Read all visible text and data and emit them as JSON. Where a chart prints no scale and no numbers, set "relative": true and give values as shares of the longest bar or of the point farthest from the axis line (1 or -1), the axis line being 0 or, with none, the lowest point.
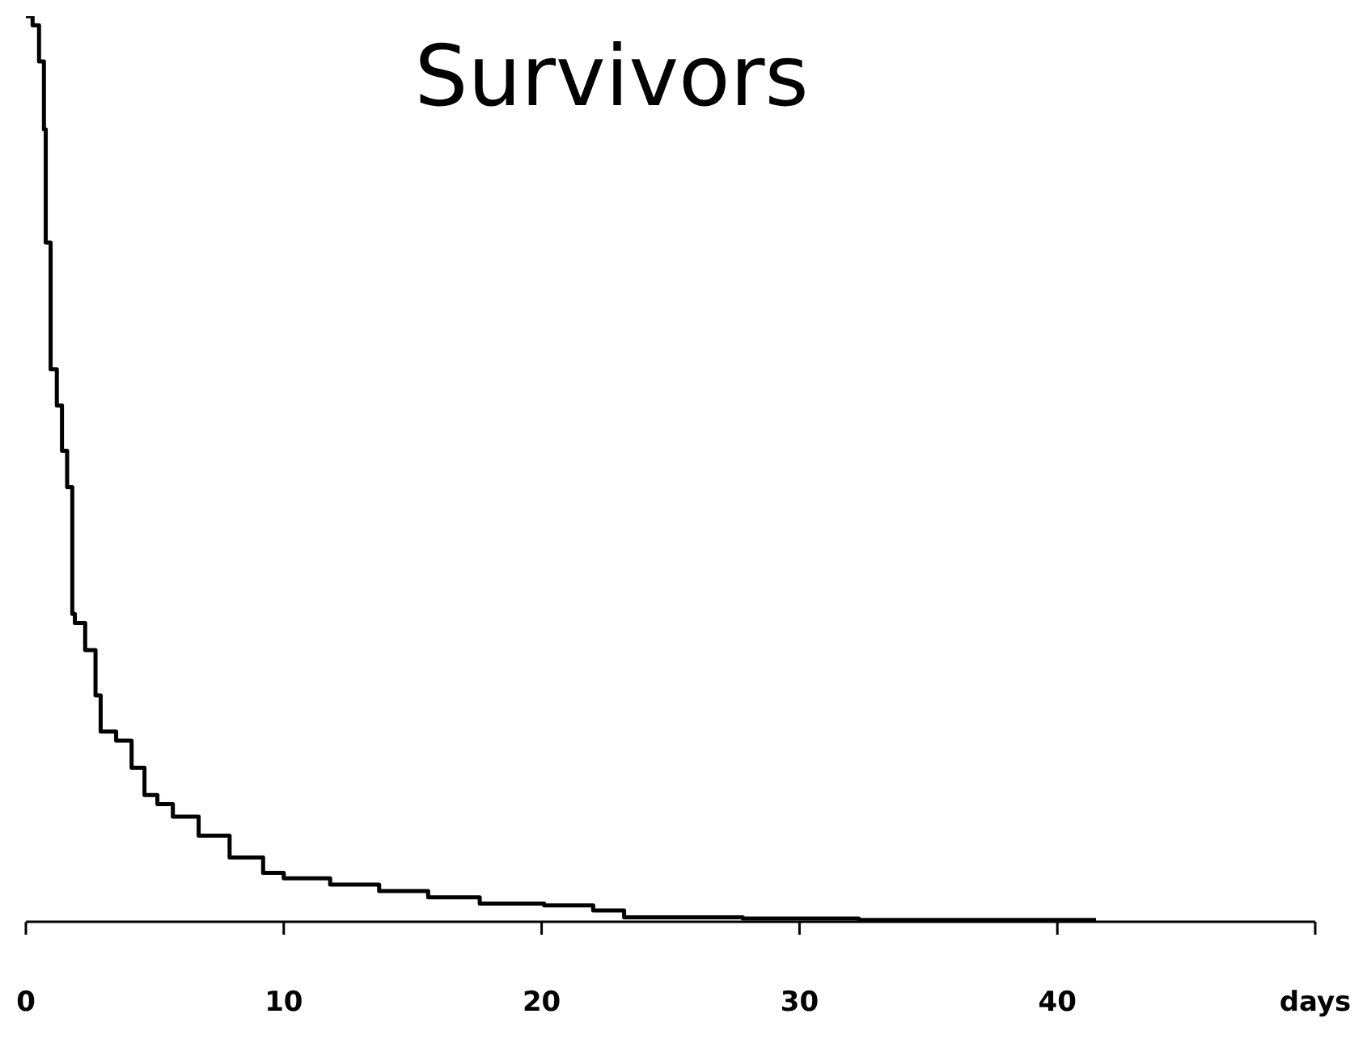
{
  "chart_data": {
    "type": "step",
    "title": "Survivors",
    "relative": true,
    "color": "#000000",
    "x": [
      0,
      0.26,
      0.51,
      0.7,
      0.77,
      0.96,
      1.2,
      1.4,
      1.6,
      1.8,
      1.9,
      2.3,
      2.7,
      2.9,
      3.5,
      4.1,
      4.6,
      5.1,
      5.7,
      6.7,
      7.9,
      9.2,
      10,
      11.8,
      13.7,
      15.6,
      17.6,
      20.1,
      22,
      23.2,
      27.8,
      32.3,
      41.5
    ],
    "values": [
      1,
      0.99,
      0.95,
      0.875,
      0.75,
      0.61,
      0.57,
      0.52,
      0.48,
      0.34,
      0.33,
      0.3,
      0.25,
      0.21,
      0.2,
      0.17,
      0.14,
      0.13,
      0.116,
      0.095,
      0.071,
      0.054,
      0.048,
      0.041,
      0.034,
      0.027,
      0.02,
      0.018,
      0.0125,
      0.005,
      0.0036,
      0.002,
      0.002
    ],
    "xlim": [
      0,
      50
    ],
    "xticks": [
      0,
      10,
      20,
      30,
      40,
      {
        "value": 50,
        "label": "days"
      }
    ],
    "grid": false,
    "legend": false,
    "marker": "none",
    "line_style": "solid"
  }
}
